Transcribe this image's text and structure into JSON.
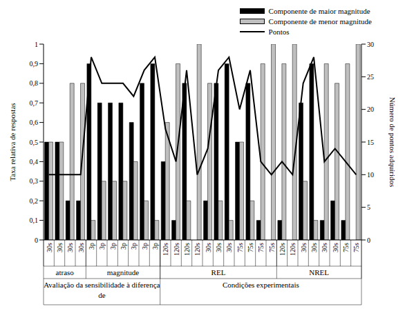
{
  "chart_data": {
    "type": "bar",
    "y_label": "Taxa relativa de respostas",
    "y2_label": "Número de pontos adquiridos",
    "categories": [
      "30s",
      "30s",
      "30s",
      "30s",
      "3p",
      "3p",
      "3p",
      "3p",
      "3p",
      "3p",
      "3p",
      "120s",
      "120s",
      "120s",
      "120s",
      "30s",
      "30s",
      "30s",
      "75s",
      "75s",
      "75s",
      "75s",
      "120s",
      "120s",
      "30s",
      "30s",
      "30s",
      "30s",
      "75s",
      "75s"
    ],
    "groups": [
      {
        "label": "atraso",
        "size": 4
      },
      {
        "label": "magnitude",
        "size": 7
      },
      {
        "label": "REL",
        "size": 11
      },
      {
        "label": "NREL",
        "size": 8
      }
    ],
    "supergroups": [
      {
        "label": "Avaliação da sensibilidade à diferença de",
        "size": 11
      },
      {
        "label": "Condições experimentais",
        "size": 19
      }
    ],
    "series": [
      {
        "name": "Componente de maior magnitude",
        "type": "bar",
        "color": "#000000",
        "values": [
          0.5,
          0.5,
          0.2,
          0.2,
          0.9,
          0.7,
          0.7,
          0.7,
          0.6,
          0.8,
          0.9,
          0.4,
          0.1,
          0.8,
          0,
          0.2,
          0.8,
          0.9,
          0.5,
          0.8,
          0.1,
          0,
          0.1,
          0,
          0.7,
          0.9,
          0.1,
          0.2,
          0.1,
          0
        ]
      },
      {
        "name": "Componente de menor magnitude",
        "type": "bar",
        "color": "#bfbfbf",
        "values": [
          0.5,
          0.5,
          0.8,
          0.8,
          0.1,
          0.3,
          0.3,
          0.3,
          0.4,
          0.2,
          0.1,
          0.6,
          0.9,
          0.2,
          1,
          0.8,
          0.2,
          0.1,
          0.5,
          0.2,
          0.9,
          1,
          0.9,
          1,
          0.3,
          0.1,
          0.9,
          0.8,
          0.9,
          1
        ]
      },
      {
        "name": "Pontos",
        "type": "line",
        "axis": "y2",
        "color": "#000000",
        "values": [
          10,
          10,
          10,
          10,
          28,
          24,
          24,
          24,
          22,
          26,
          28,
          17,
          12,
          26,
          10,
          14,
          26,
          28,
          20,
          26,
          12,
          10,
          12,
          10,
          24,
          28,
          12,
          14,
          12,
          10
        ]
      }
    ],
    "ylim": [
      0,
      1
    ],
    "yticks": [
      0,
      {
        "value": 0.1,
        "label": "0,1"
      },
      {
        "value": 0.2,
        "label": "0,2"
      },
      {
        "value": 0.3,
        "label": "0,3"
      },
      {
        "value": 0.4,
        "label": "0,4"
      },
      {
        "value": 0.5,
        "label": "0,5"
      },
      {
        "value": 0.6,
        "label": "0,6"
      },
      {
        "value": 0.7,
        "label": "0,7"
      },
      {
        "value": 0.8,
        "label": "0,8"
      },
      {
        "value": 0.9,
        "label": "0,9"
      },
      1
    ],
    "y2lim": [
      0,
      30
    ],
    "y2ticks": [
      0,
      5,
      10,
      15,
      20,
      25,
      30
    ],
    "legend": "top right",
    "grid": false
  }
}
